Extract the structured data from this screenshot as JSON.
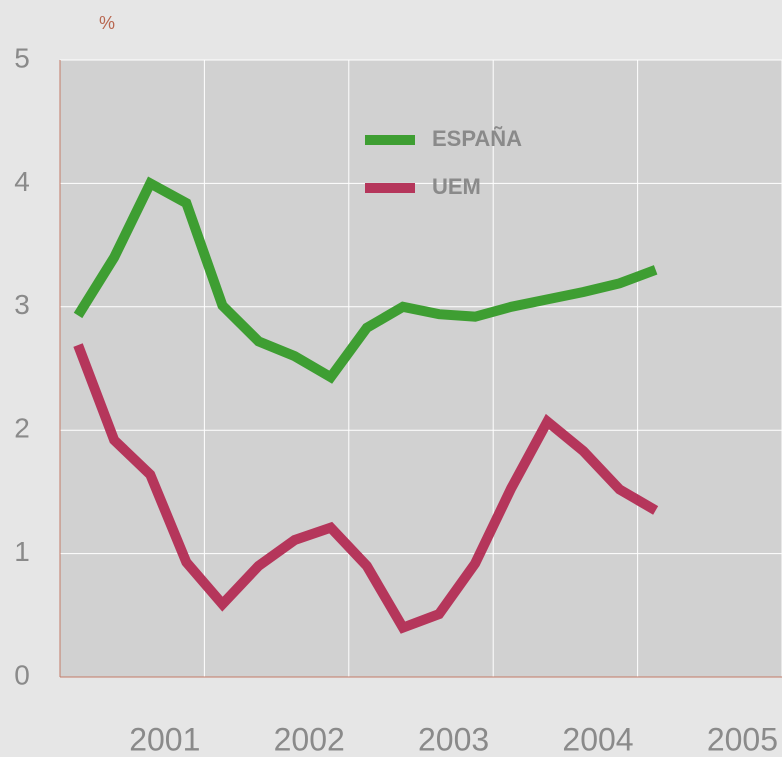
{
  "chart_data": {
    "type": "line",
    "y_label": "%",
    "x": [
      2000.125,
      2000.375,
      2000.625,
      2000.875,
      2001.125,
      2001.375,
      2001.625,
      2001.875,
      2002.125,
      2002.375,
      2002.625,
      2002.875,
      2003.125,
      2003.375,
      2003.625,
      2003.875,
      2004.125
    ],
    "series": [
      {
        "name": "ESPAÑA",
        "color": "#3e9e32",
        "values": [
          2.93,
          3.4,
          4.0,
          3.84,
          3.01,
          2.72,
          2.6,
          2.43,
          2.83,
          3.0,
          2.94,
          2.92,
          3.0,
          3.06,
          3.12,
          3.19,
          3.3
        ]
      },
      {
        "name": "UEM",
        "color": "#b5365b",
        "values": [
          2.69,
          1.92,
          1.64,
          0.93,
          0.59,
          0.9,
          1.11,
          1.21,
          0.9,
          0.4,
          0.51,
          0.92,
          1.53,
          2.07,
          1.83,
          1.52,
          1.35
        ]
      }
    ],
    "xlim": [
      2000,
      2005
    ],
    "xticks": [
      2001,
      2002,
      2003,
      2004,
      2005
    ],
    "ylim": [
      0,
      5
    ],
    "yticks": [
      0,
      1,
      2,
      3,
      4,
      5
    ],
    "grid": true
  }
}
